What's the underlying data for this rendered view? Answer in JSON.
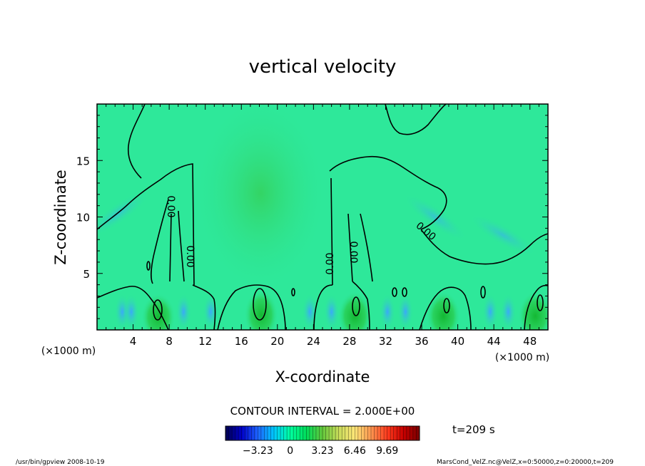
{
  "chart_data": {
    "type": "heatmap",
    "title": "vertical velocity",
    "xlabel": "X-coordinate",
    "ylabel": "Z-coordinate",
    "x_unit": "(×1000 m)",
    "y_unit": "(×1000 m)",
    "xlim": [
      0,
      50
    ],
    "ylim": [
      0,
      20
    ],
    "x_ticks": [
      "4",
      "8",
      "12",
      "16",
      "20",
      "24",
      "28",
      "32",
      "36",
      "40",
      "44",
      "48"
    ],
    "y_ticks": [
      "5",
      "10",
      "15"
    ],
    "contour_interval_text": "CONTOUR INTERVAL = 2.000E+00",
    "contour_labels": [
      "0.00",
      "0.00",
      "0.00",
      "0.00",
      "0.00"
    ],
    "time_text": "t=209 s",
    "colorbar": {
      "tick_labels": [
        "−3.23",
        "0",
        "3.23",
        "6.46",
        "9.69"
      ],
      "min": -6.46,
      "max": 12.92,
      "colors": [
        "#000050",
        "#0000c8",
        "#1e64ff",
        "#00c8ff",
        "#00ffa0",
        "#00dc5a",
        "#64c83c",
        "#c8dc5a",
        "#ffe678",
        "#ff9650",
        "#ff3c1e",
        "#c80000",
        "#780000"
      ]
    },
    "updrafts": [
      {
        "x_center": 6.8,
        "z_top": 3.2,
        "peak": 2.6
      },
      {
        "x_center": 18.2,
        "z_top": 3.6,
        "peak": 2.9
      },
      {
        "x_center": 28.6,
        "z_top": 3.4,
        "peak": 2.4
      },
      {
        "x_center": 38.4,
        "z_top": 3.4,
        "peak": 2.2
      },
      {
        "x_center": 48.6,
        "z_top": 3.4,
        "peak": 2.4
      }
    ],
    "background_color": "#2ee89a",
    "updraft_color": "#22c840",
    "downdraft_color": "#3ab8ff"
  },
  "footer": {
    "left": "/usr/bin/gpview   2008-10-19",
    "right": "MarsCond_VelZ.nc@VelZ,x=0:50000,z=0:20000,t=209"
  }
}
